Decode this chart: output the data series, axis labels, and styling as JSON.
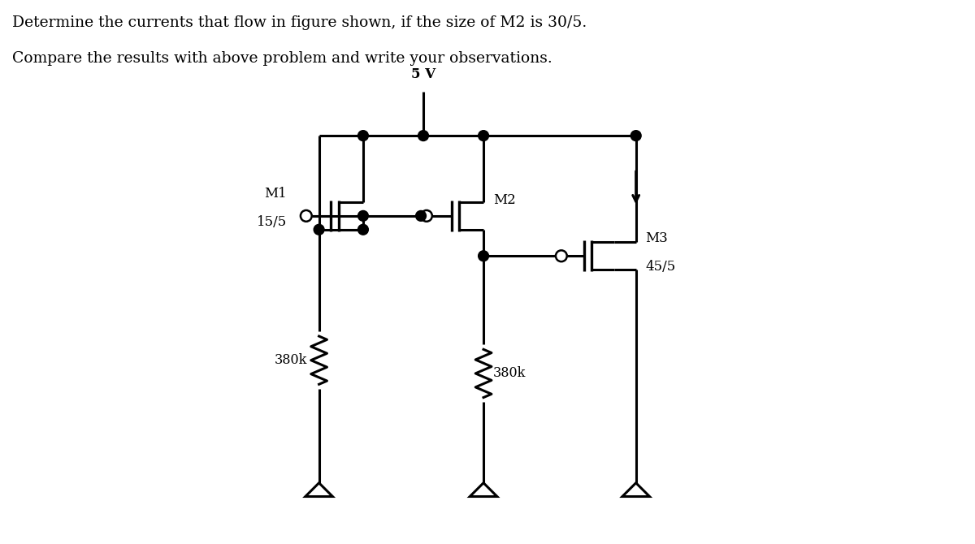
{
  "title_line1": "Determine the currents that flow in figure shown, if the size of M2 is 30/5.",
  "title_line2": "Compare the results with above problem and write your observations.",
  "vdd_label": "5 V",
  "m1_label": "M1",
  "m1_size": "15/5",
  "m2_label": "M2",
  "m3_label": "M3",
  "m3_size": "45/5",
  "r1_label": "380k",
  "r2_label": "380k",
  "bg_color": "#ffffff",
  "line_color": "#000000",
  "text_color": "#000000",
  "lw": 2.2
}
